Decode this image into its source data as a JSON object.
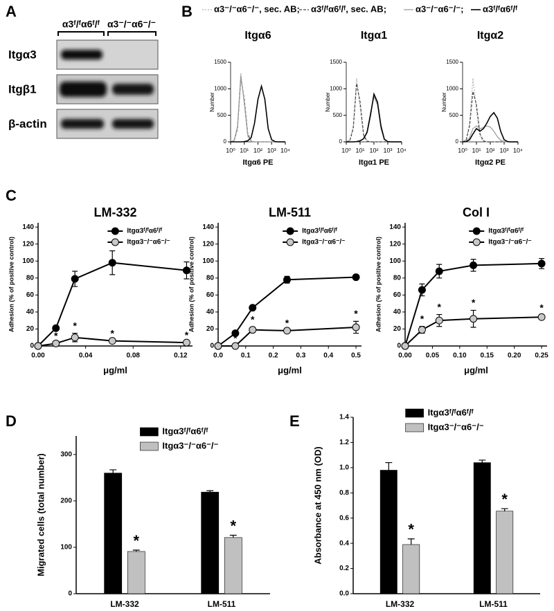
{
  "panel_labels": [
    "A",
    "B",
    "C",
    "D",
    "E"
  ],
  "blot": {
    "columns": [
      "α3ᶠ/ᶠα6ᶠ/ᶠ",
      "α3⁻/⁻α6⁻/⁻"
    ],
    "rows": [
      "Itgα3",
      "Itgβ1",
      "β-actin"
    ]
  },
  "flow_legend": [
    {
      "name": "α3⁻/⁻α6⁻/⁻, sec. AB;",
      "color": "#b0b0b0",
      "dash": "2,2",
      "width": 1.2
    },
    {
      "name": "α3ᶠ/ᶠα6ᶠ/ᶠ, sec. AB;",
      "color": "#444444",
      "dash": "4,2",
      "width": 1.2
    },
    {
      "name": "α3⁻/⁻α6⁻/⁻;",
      "color": "#9a9a9a",
      "dash": "none",
      "width": 1.2
    },
    {
      "name": "α3ᶠ/ᶠα6ᶠ/ᶠ",
      "color": "#000000",
      "dash": "none",
      "width": 1.6
    }
  ],
  "chart_data": [
    {
      "type": "flow",
      "title": "Itgα6",
      "xlabel": "Itgα6 PE",
      "ylabel": "Number",
      "xscale": "log",
      "x": [
        1,
        1.8,
        3.2,
        5.6,
        10,
        18,
        32,
        56,
        100,
        180,
        320,
        560,
        1000,
        1800,
        3200,
        10000
      ],
      "xlim": [
        1,
        10000
      ],
      "xticks": [
        {
          "value": 1,
          "label": "10⁰"
        },
        {
          "value": 10,
          "label": "10¹"
        },
        {
          "value": 100,
          "label": "10²"
        },
        {
          "value": 1000,
          "label": "10³"
        },
        {
          "value": 10000,
          "label": "10⁴"
        }
      ],
      "ylim": [
        0,
        1500
      ],
      "yticks": [
        0,
        500,
        1000,
        1500
      ],
      "series": [
        {
          "values": [
            0,
            30,
            300,
            1300,
            700,
            100,
            10,
            0,
            0,
            0,
            0,
            0,
            0,
            0,
            0,
            0
          ]
        },
        {
          "values": [
            0,
            20,
            250,
            1200,
            800,
            150,
            15,
            0,
            0,
            0,
            0,
            0,
            0,
            0,
            0,
            0
          ]
        },
        {
          "values": [
            0,
            25,
            280,
            1250,
            750,
            120,
            12,
            0,
            0,
            0,
            0,
            0,
            0,
            0,
            0,
            0
          ]
        },
        {
          "values": [
            0,
            0,
            0,
            0,
            5,
            20,
            80,
            350,
            800,
            1050,
            800,
            250,
            40,
            5,
            0,
            0
          ]
        }
      ]
    },
    {
      "type": "flow",
      "title": "Itgα1",
      "xlabel": "Itgα1 PE",
      "ylabel": "Number",
      "xscale": "log",
      "x": [
        1,
        1.8,
        3.2,
        5.6,
        10,
        18,
        32,
        56,
        100,
        180,
        320,
        560,
        1000,
        1800,
        3200,
        10000
      ],
      "xlim": [
        1,
        10000
      ],
      "xticks": [
        {
          "value": 1,
          "label": "10⁰"
        },
        {
          "value": 10,
          "label": "10¹"
        },
        {
          "value": 100,
          "label": "10²"
        },
        {
          "value": 1000,
          "label": "10³"
        },
        {
          "value": 10000,
          "label": "10⁴"
        }
      ],
      "ylim": [
        0,
        1500
      ],
      "yticks": [
        0,
        500,
        1000,
        1500
      ],
      "series": [
        {
          "values": [
            0,
            30,
            300,
            1200,
            650,
            100,
            10,
            0,
            0,
            0,
            0,
            0,
            0,
            0,
            0,
            0
          ]
        },
        {
          "values": [
            0,
            20,
            250,
            1100,
            750,
            130,
            15,
            0,
            0,
            0,
            0,
            0,
            0,
            0,
            0,
            0
          ]
        },
        {
          "values": [
            0,
            0,
            0,
            5,
            20,
            60,
            200,
            550,
            850,
            700,
            250,
            40,
            5,
            0,
            0,
            0
          ]
        },
        {
          "values": [
            0,
            0,
            0,
            5,
            20,
            60,
            180,
            500,
            900,
            750,
            300,
            50,
            5,
            0,
            0,
            0
          ]
        }
      ]
    },
    {
      "type": "flow",
      "title": "Itgα2",
      "xlabel": "Itgα2 PE",
      "ylabel": "Number",
      "xscale": "log",
      "x": [
        1,
        1.8,
        3.2,
        5.6,
        10,
        18,
        32,
        56,
        100,
        180,
        320,
        560,
        1000,
        1800,
        3200,
        10000
      ],
      "xlim": [
        1,
        10000
      ],
      "xticks": [
        {
          "value": 1,
          "label": "10⁰"
        },
        {
          "value": 10,
          "label": "10¹"
        },
        {
          "value": 100,
          "label": "10²"
        },
        {
          "value": 1000,
          "label": "10³"
        },
        {
          "value": 10000,
          "label": "10⁴"
        }
      ],
      "ylim": [
        0,
        1500
      ],
      "yticks": [
        0,
        500,
        1000,
        1500
      ],
      "series": [
        {
          "values": [
            0,
            40,
            350,
            1200,
            600,
            100,
            10,
            0,
            0,
            0,
            0,
            0,
            0,
            0,
            0,
            0
          ]
        },
        {
          "values": [
            0,
            30,
            300,
            950,
            700,
            150,
            20,
            0,
            0,
            0,
            0,
            0,
            0,
            0,
            0,
            0
          ]
        },
        {
          "values": [
            0,
            10,
            80,
            250,
            300,
            250,
            270,
            300,
            280,
            200,
            100,
            30,
            5,
            0,
            0,
            0
          ]
        },
        {
          "values": [
            0,
            5,
            40,
            150,
            250,
            200,
            250,
            350,
            480,
            550,
            450,
            200,
            40,
            5,
            0,
            0
          ]
        }
      ]
    },
    {
      "type": "line",
      "title": "LM-332",
      "xlabel": "μg/ml",
      "ylabel": "Adhesion (% of positive control)",
      "x": [
        0,
        0.015,
        0.031,
        0.0625,
        0.125
      ],
      "xlim": [
        0,
        0.13
      ],
      "xticks": [
        {
          "value": 0,
          "label": "0.00"
        },
        0.04,
        0.08,
        0.12
      ],
      "ylim": [
        0,
        145
      ],
      "yticks": [
        0,
        20,
        40,
        60,
        80,
        100,
        120,
        140
      ],
      "series": [
        {
          "name": "Itgα3ᶠ/ᶠα6ᶠ/ᶠ",
          "color": "#000000",
          "values": [
            0,
            21,
            79,
            98,
            89
          ],
          "errors": [
            0,
            0,
            9,
            14,
            10
          ]
        },
        {
          "name": "Itgα3⁻/⁻α6⁻/⁻",
          "color": "#c8c8c8",
          "values": [
            0,
            3,
            10,
            6,
            4
          ],
          "errors": [
            0,
            0,
            5,
            0,
            0
          ],
          "annotations": [
            null,
            "*",
            "*",
            "*",
            "*"
          ]
        }
      ]
    },
    {
      "type": "line",
      "title": "LM-511",
      "xlabel": "μg/ml",
      "ylabel": "Adhesion (% of positive control)",
      "x": [
        0,
        0.0625,
        0.125,
        0.25,
        0.5
      ],
      "xlim": [
        0,
        0.52
      ],
      "xticks": [
        {
          "value": 0,
          "label": "0.0"
        },
        0.1,
        0.2,
        0.3,
        0.4,
        0.5
      ],
      "ylim": [
        0,
        145
      ],
      "yticks": [
        0,
        20,
        40,
        60,
        80,
        100,
        120,
        140
      ],
      "series": [
        {
          "name": "Itgα3ᶠ/ᶠα6ᶠ/ᶠ",
          "color": "#000000",
          "values": [
            0,
            15,
            45,
            78,
            81
          ],
          "errors": [
            0,
            0,
            0,
            4,
            0
          ]
        },
        {
          "name": "Itgα3⁻/⁻α6⁻/⁻",
          "color": "#c8c8c8",
          "values": [
            0,
            0,
            19,
            18,
            22
          ],
          "errors": [
            0,
            0,
            3,
            0,
            7
          ],
          "annotations": [
            null,
            "*",
            "*",
            "*",
            "*"
          ]
        }
      ]
    },
    {
      "type": "line",
      "title": "Col I",
      "xlabel": "μg/ml",
      "ylabel": "Adhesion (% of positive control)",
      "x": [
        0,
        0.031,
        0.0625,
        0.125,
        0.25
      ],
      "xlim": [
        0,
        0.26
      ],
      "xticks": [
        {
          "value": 0,
          "label": "0.00"
        },
        0.05,
        {
          "value": 0.1,
          "label": "0.10"
        },
        0.15,
        {
          "value": 0.2,
          "label": "0.20"
        },
        0.25
      ],
      "ylim": [
        0,
        145
      ],
      "yticks": [
        0,
        20,
        40,
        60,
        80,
        100,
        120,
        140
      ],
      "series": [
        {
          "name": "Itgα3ᶠ/ᶠα6ᶠ/ᶠ",
          "color": "#000000",
          "values": [
            0,
            66,
            88,
            95,
            97
          ],
          "errors": [
            0,
            7,
            8,
            7,
            6
          ]
        },
        {
          "name": "Itgα3⁻/⁻α6⁻/⁻",
          "color": "#c8c8c8",
          "values": [
            0,
            19,
            30,
            32,
            34
          ],
          "errors": [
            0,
            4,
            7,
            10,
            2
          ],
          "annotations": [
            null,
            "*",
            "*",
            "*",
            "*"
          ]
        }
      ]
    },
    {
      "type": "bar",
      "ylabel": "Migrated cells (total number)",
      "categories": [
        "LM-332",
        "LM-511"
      ],
      "ylim": [
        0,
        340
      ],
      "yticks": [
        0,
        100,
        200,
        300
      ],
      "series": [
        {
          "name": "Itgα3ᶠ/ᶠα6ᶠ/ᶠ",
          "color": "#000000",
          "values": [
            260,
            219
          ],
          "errors": [
            7,
            3
          ]
        },
        {
          "name": "Itgα3⁻/⁻α6⁻/⁻",
          "color": "#c0c0c0",
          "values": [
            91,
            121
          ],
          "errors": [
            3,
            5
          ],
          "annotations": [
            "*",
            "*"
          ]
        }
      ]
    },
    {
      "type": "bar",
      "ylabel": "Absorbance at 450 nm (OD)",
      "categories": [
        "LM-332",
        "LM-511"
      ],
      "ylim": [
        0,
        1.4
      ],
      "yticks": [
        {
          "value": 0,
          "label": "0.0"
        },
        0.2,
        0.4,
        0.6,
        0.8,
        {
          "value": 1,
          "label": "1.0"
        },
        1.2,
        1.4
      ],
      "series": [
        {
          "name": "Itgα3ᶠ/ᶠα6ᶠ/ᶠ",
          "color": "#000000",
          "values": [
            0.98,
            1.04
          ],
          "errors": [
            0.06,
            0.02
          ]
        },
        {
          "name": "Itgα3⁻/⁻α6⁻/⁻",
          "color": "#c0c0c0",
          "values": [
            0.39,
            0.655
          ],
          "errors": [
            0.045,
            0.02
          ],
          "annotations": [
            "*",
            "*"
          ]
        }
      ]
    }
  ]
}
